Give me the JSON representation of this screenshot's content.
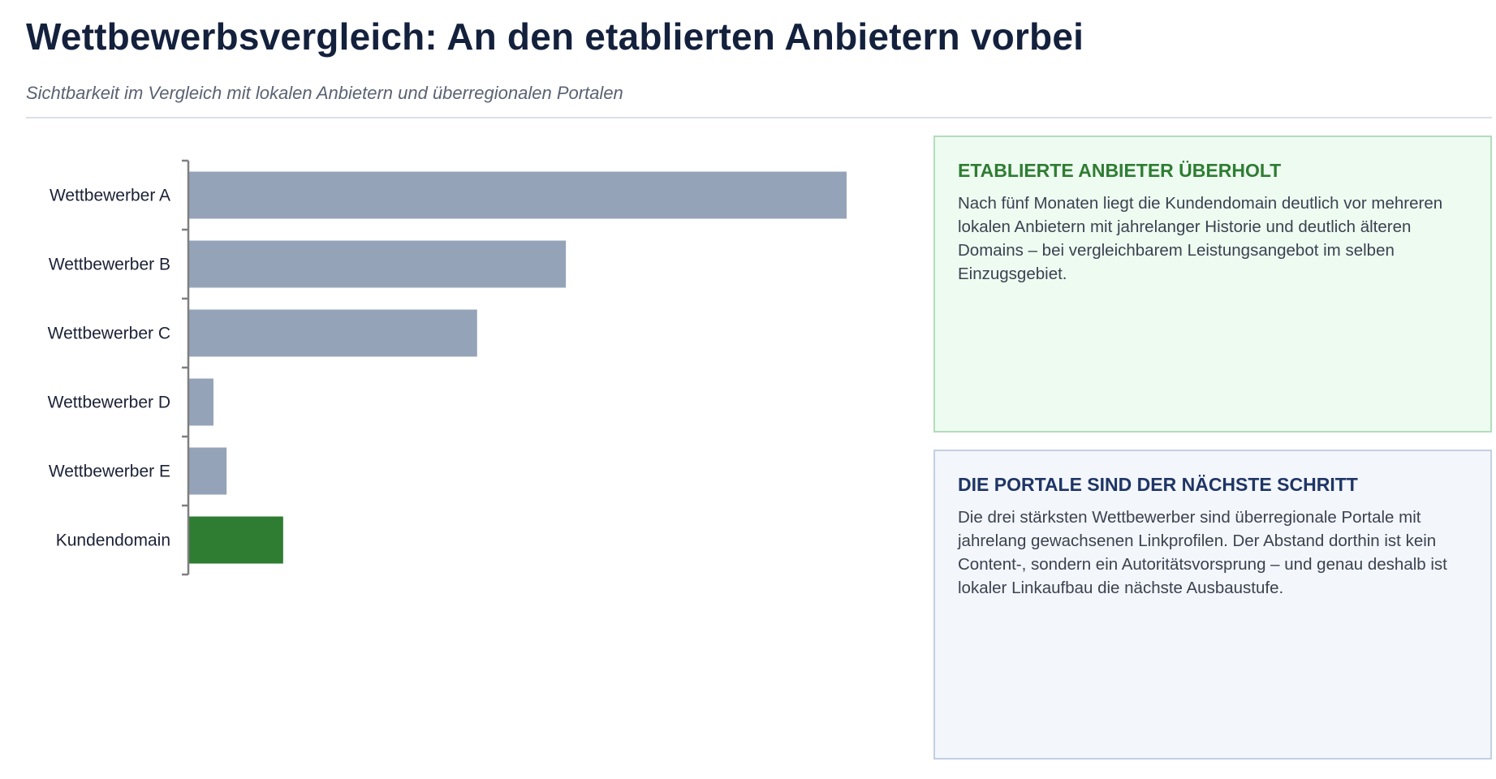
{
  "header": {
    "title": "Wettbewerbsvergleich: An den etablierten Anbietern vorbei",
    "subtitle": "Sichtbarkeit im Vergleich mit lokalen Anbietern und überregionalen Portalen"
  },
  "chart_data": {
    "type": "bar",
    "orientation": "horizontal",
    "categories": [
      "Wettbewerber A",
      "Wettbewerber B",
      "Wettbewerber C",
      "Wettbewerber D",
      "Wettbewerber E",
      "Kundendomain"
    ],
    "values": [
      100,
      57.3,
      43.8,
      3.7,
      5.7,
      14.3
    ],
    "colors": [
      "#95a3b9",
      "#95a3b9",
      "#95a3b9",
      "#95a3b9",
      "#95a3b9",
      "#2e7d32"
    ],
    "highlight": "Kundendomain",
    "xlim": [
      0,
      100
    ],
    "title": "",
    "xlabel": "",
    "ylabel": "",
    "grid": false,
    "legend": "none"
  },
  "cards": [
    {
      "title": "ETABLIERTE ANBIETER ÜBERHOLT",
      "body": "Nach fünf Monaten liegt die Kundendomain deutlich vor mehreren lokalen Anbietern mit jahrelanger Historie und deutlich älteren Domains – bei vergleichbarem Leistungsangebot im selben Einzugsgebiet.",
      "accent": "#2e7d32"
    },
    {
      "title": "DIE PORTALE SIND DER NÄCHSTE SCHRITT",
      "body": "Die drei stärksten Wettbewerber sind überregionale Portale mit jahrelang gewachsenen Linkprofilen. Der Abstand dorthin ist kein Content-, sondern ein Autoritätsvorsprung – und genau deshalb ist lokaler Linkaufbau die nächste Ausbaustufe.",
      "accent": "#1f3566"
    }
  ]
}
